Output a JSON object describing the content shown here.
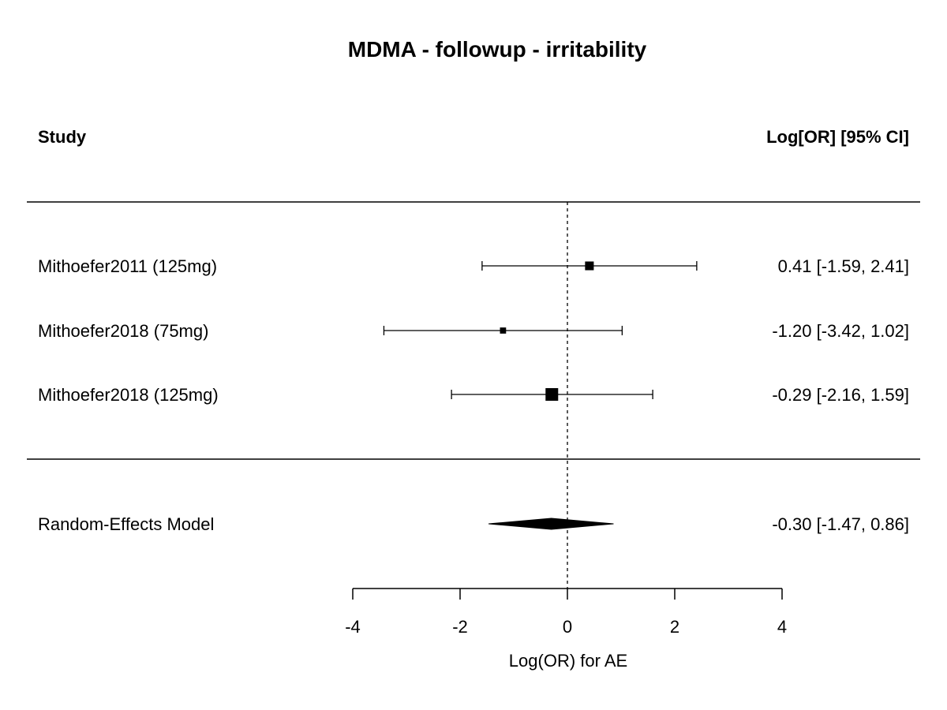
{
  "chart_data": {
    "type": "forest",
    "title": "MDMA - followup - irritability",
    "header_left": "Study",
    "header_right": "Log[OR] [95% CI]",
    "xlabel": "Log(OR) for AE",
    "xlim": [
      -4,
      4
    ],
    "xticks": [
      "-4",
      "-2",
      "0",
      "2",
      "4"
    ],
    "xtick_values": [
      -4,
      -2,
      0,
      2,
      4
    ],
    "reference_line": 0,
    "studies": [
      {
        "label": "Mithoefer2011 (125mg)",
        "estimate": 0.41,
        "ci_lower": -1.59,
        "ci_upper": 2.41,
        "weight": 0.55,
        "text": "0.41 [-1.59, 2.41]"
      },
      {
        "label": "Mithoefer2018 (75mg)",
        "estimate": -1.2,
        "ci_lower": -3.42,
        "ci_upper": 1.02,
        "weight": 0.25,
        "text": "-1.20 [-3.42, 1.02]"
      },
      {
        "label": "Mithoefer2018 (125mg)",
        "estimate": -0.29,
        "ci_lower": -2.16,
        "ci_upper": 1.59,
        "weight": 1.0,
        "text": "-0.29 [-2.16, 1.59]"
      }
    ],
    "summary": {
      "label": "Random-Effects Model",
      "estimate": -0.3,
      "ci_lower": -1.47,
      "ci_upper": 0.86,
      "text": "-0.30 [-1.47, 0.86]"
    }
  }
}
